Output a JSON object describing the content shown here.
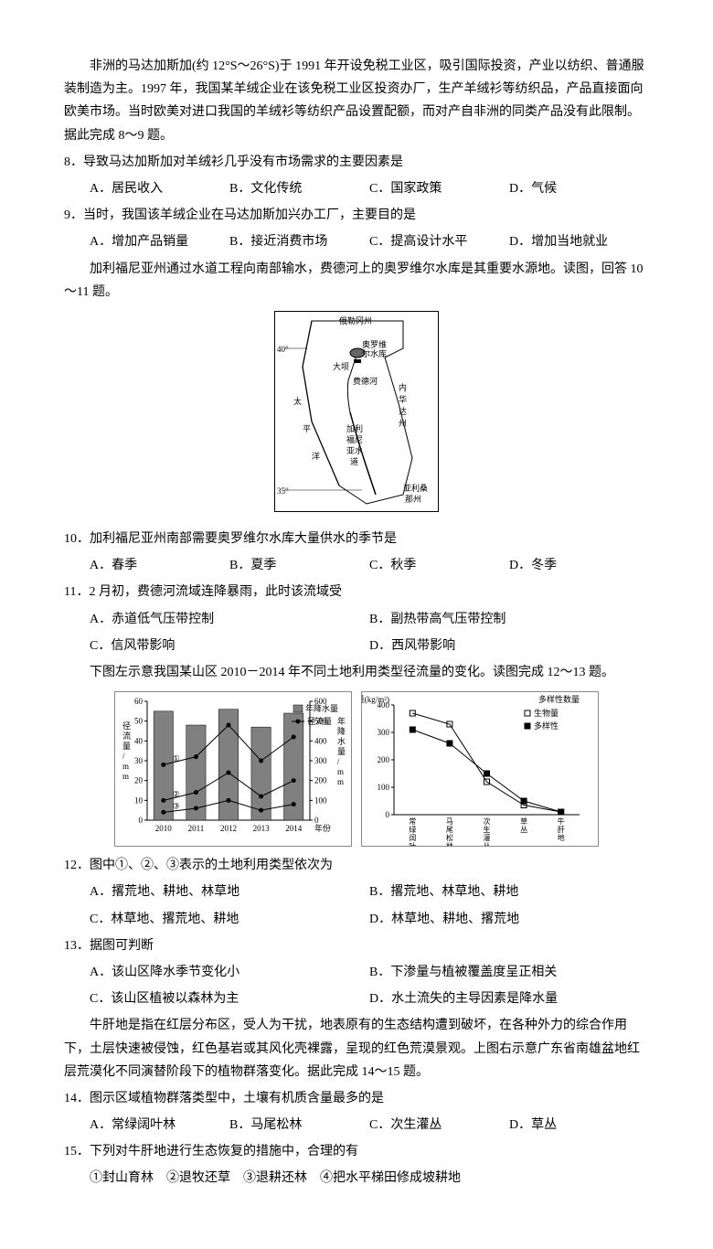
{
  "intro1": "非洲的马达加斯加(约 12°S～26°S)于 1991 年开设免税工业区，吸引国际投资，产业以纺织、普通服装制造为主。1997 年，我国某羊绒企业在该免税工业区投资办厂，生产羊绒衫等纺织品，产品直接面向欧美市场。当时欧美对进口我国的羊绒衫等纺织产品设置配额，而对产自非洲的同类产品没有此限制。据此完成 8～9 题。",
  "q8": {
    "text": "8．导致马达加斯加对羊绒衫几乎没有市场需求的主要因素是",
    "opts": [
      "A．居民收入",
      "B．文化传统",
      "C．国家政策",
      "D．气候"
    ]
  },
  "q9": {
    "text": "9．当时，我国该羊绒企业在马达加斯加兴办工厂，主要目的是",
    "opts": [
      "A．增加产品销量",
      "B．接近消费市场",
      "C．提高设计水平",
      "D．增加当地就业"
    ]
  },
  "intro2": "加利福尼亚州通过水道工程向南部输水，费德河上的奥罗维尔水库是其重要水源地。读图，回答 10～11 题。",
  "map": {
    "labels": {
      "oregon": "俄勒冈州",
      "lat40": "40°",
      "lat35": "35°",
      "oroville1": "奥罗维",
      "oroville2": "尔水库",
      "dam": "大坝",
      "feather": "费德河",
      "nevada1": "内",
      "nevada2": "华",
      "nevada3": "达",
      "nevada4": "州",
      "pacific1": "太",
      "pacific2": "平",
      "pacific3": "洋",
      "california1": "加利",
      "california2": "福尼",
      "california3": "亚水",
      "california4": "道",
      "arizona1": "亚利桑",
      "arizona2": "那州"
    }
  },
  "q10": {
    "text": "10．加利福尼亚州南部需要奥罗维尔水库大量供水的季节是",
    "opts": [
      "A．春季",
      "B．夏季",
      "C．秋季",
      "D．冬季"
    ]
  },
  "q11": {
    "text": "11．2 月初，费德河流域连降暴雨，此时该流域受",
    "opts": [
      "A．赤道低气压带控制",
      "B．副热带高气压带控制",
      "C．信风带影响",
      "D．西风带影响"
    ]
  },
  "intro3": "下图左示意我国某山区 2010－2014 年不同土地利用类型径流量的变化。读图完成 12～13 题。",
  "chart1": {
    "type": "combo-bar-line",
    "years": [
      "2010",
      "2011",
      "2012",
      "2013",
      "2014"
    ],
    "xlabel": "年份",
    "ylabel_left": "径流量/mm",
    "ylabel_right": "年降水量/mm",
    "left_ylim": [
      0,
      60
    ],
    "left_step": 10,
    "right_ylim": [
      0,
      600
    ],
    "right_step": 100,
    "precip_bars": [
      550,
      480,
      560,
      470,
      540
    ],
    "line1": [
      28,
      32,
      48,
      30,
      42
    ],
    "line2": [
      10,
      14,
      24,
      12,
      20
    ],
    "line3": [
      4,
      6,
      10,
      5,
      8
    ],
    "line_markers": [
      "①",
      "②",
      "③"
    ],
    "legend": [
      "年降水量",
      "径流量"
    ],
    "bar_color": "#808080",
    "line_color": "#000000",
    "bg": "#ffffff",
    "grid": "#cccccc",
    "fontsize": 9
  },
  "chart2": {
    "type": "dual-axis-line",
    "categories": [
      "常绿阔叶林",
      "马尾松林",
      "次生灌丛",
      "草丛",
      "牛肝地"
    ],
    "ylabel_left": "生物量(kg/m²)",
    "ylabel_right": "多样性数量",
    "left_ylim": [
      0,
      400
    ],
    "left_step": 100,
    "biomass": [
      370,
      330,
      120,
      35,
      10
    ],
    "diversity": [
      310,
      260,
      150,
      50,
      10
    ],
    "legend": [
      "生物量",
      "多样性"
    ],
    "marker1": "square-open",
    "marker2": "square-filled",
    "colors": {
      "line": "#000000",
      "marker_fill": "#000000",
      "marker_open": "#ffffff"
    },
    "bg": "#ffffff",
    "fontsize": 9
  },
  "q12": {
    "text": "12．图中①、②、③表示的土地利用类型依次为",
    "opts": [
      "A．撂荒地、耕地、林草地",
      "B．撂荒地、林草地、耕地",
      "C．林草地、撂荒地、耕地",
      "D．林草地、耕地、撂荒地"
    ]
  },
  "q13": {
    "text": "13．据图可判断",
    "opts": [
      "A．该山区降水季节变化小",
      "B．下渗量与植被覆盖度呈正相关",
      "C．该山区植被以森林为主",
      "D．水土流失的主导因素是降水量"
    ]
  },
  "intro4": "牛肝地是指在红层分布区，受人为干扰，地表原有的生态结构遭到破坏，在各种外力的综合作用下，土层快速被侵蚀，红色基岩或其风化壳裸露，呈现的红色荒漠景观。上图右示意广东省南雄盆地红层荒漠化不同演替阶段下的植物群落变化。据此完成 14～15 题。",
  "q14": {
    "text": "14．图示区域植物群落类型中，土壤有机质含量最多的是",
    "opts": [
      "A．常绿阔叶林",
      "B．马尾松林",
      "C．次生灌丛",
      "D．草丛"
    ]
  },
  "q15": {
    "text": "15．下列对牛肝地进行生态恢复的措施中，合理的有",
    "sub": "①封山育林　②退牧还草　③退耕还林　④把水平梯田修成坡耕地"
  }
}
